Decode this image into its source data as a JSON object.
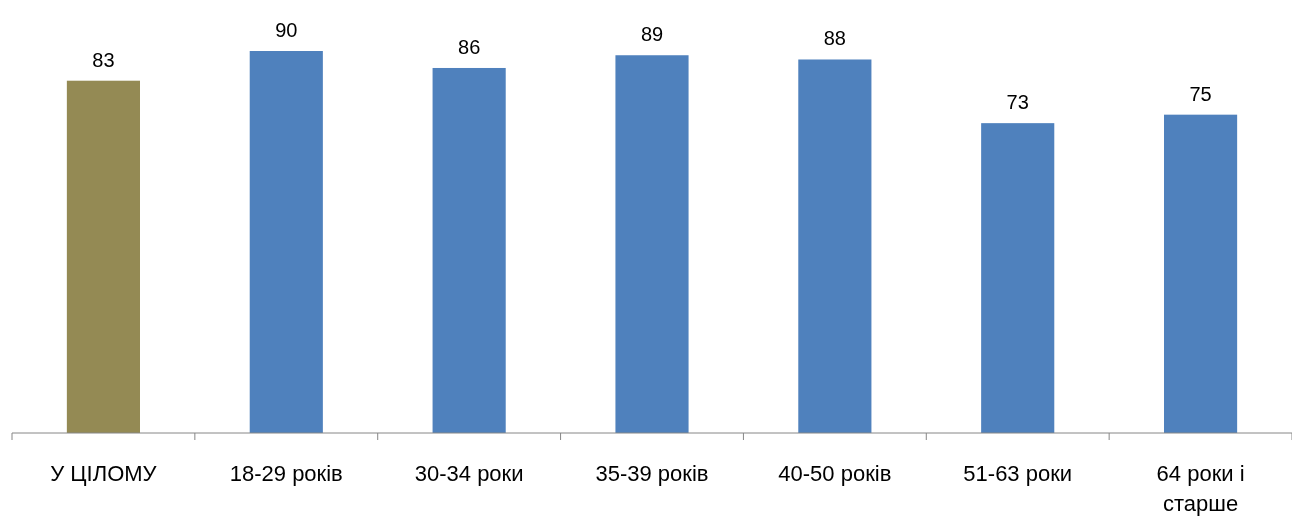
{
  "chart_data": {
    "type": "bar",
    "categories": [
      "У ЦІЛОМУ",
      "18-29 років",
      "30-34 роки",
      "35-39 років",
      "40-50 років",
      "51-63 роки",
      "64 роки і старше"
    ],
    "values": [
      83,
      90,
      86,
      89,
      88,
      73,
      75
    ],
    "colors": [
      "#948a54",
      "#4f81bd",
      "#4f81bd",
      "#4f81bd",
      "#4f81bd",
      "#4f81bd",
      "#4f81bd"
    ],
    "data_labels": true
  }
}
